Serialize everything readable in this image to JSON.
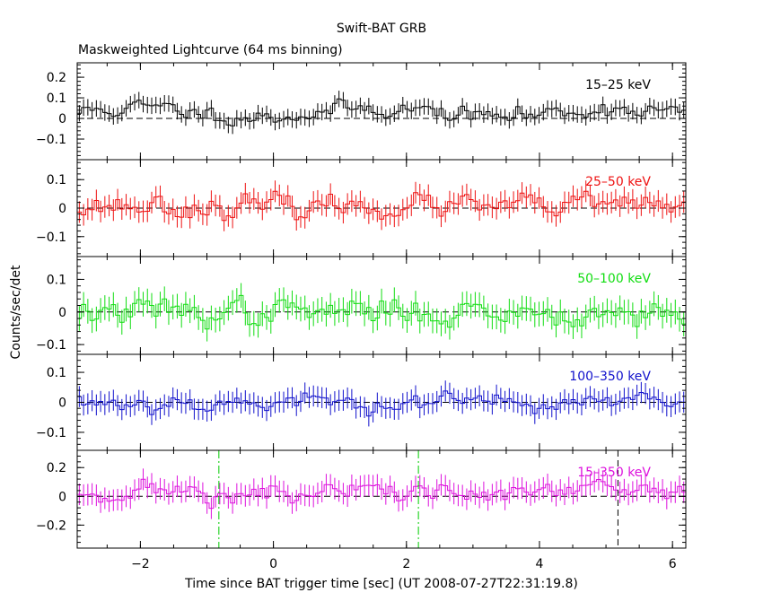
{
  "chart_data": {
    "type": "line",
    "title": "Swift-BAT GRB",
    "subtitle": "Maskweighted Lightcurve (64 ms binning)",
    "xlabel": "Time since BAT trigger time [sec] (UT 2008-07-27T22:31:19.8)",
    "ylabel": "Counts/sec/det",
    "xlim": [
      -2.95,
      6.2
    ],
    "x_ticks": [
      -2,
      0,
      2,
      4,
      6
    ],
    "x_tick_labels": [
      "−2",
      "0",
      "2",
      "4",
      "6"
    ],
    "bin_width_sec": 0.064,
    "zero_line": "dashed",
    "vertical_markers": [
      {
        "x": -0.82,
        "style": "dash-dot",
        "color": "#00cc00"
      },
      {
        "x": 2.18,
        "style": "dash-dot",
        "color": "#00cc00"
      },
      {
        "x": 5.18,
        "style": "dashed",
        "color": "#000000"
      }
    ],
    "panels": [
      {
        "name": "15–25 keV",
        "color": "#000000",
        "ylim": [
          -0.2,
          0.27
        ],
        "y_ticks": [
          -0.1,
          0,
          0.1,
          0.2
        ],
        "y_tick_labels": [
          "−0.1",
          "0",
          "0.1",
          "0.2"
        ],
        "level": 0.05,
        "noise": 0.04,
        "err": 0.04,
        "seed": 11
      },
      {
        "name": "25–50 keV",
        "color": "#ee1111",
        "ylim": [
          -0.17,
          0.17
        ],
        "y_ticks": [
          -0.1,
          0,
          0.1
        ],
        "y_tick_labels": [
          "−0.1",
          "0",
          "0.1"
        ],
        "level": 0.01,
        "noise": 0.04,
        "err": 0.038,
        "seed": 23
      },
      {
        "name": "50–100 keV",
        "color": "#11dd11",
        "ylim": [
          -0.13,
          0.17
        ],
        "y_ticks": [
          -0.1,
          0,
          0.1
        ],
        "y_tick_labels": [
          "−0.1",
          "0",
          "0.1"
        ],
        "level": 0.0,
        "noise": 0.04,
        "err": 0.038,
        "seed": 37
      },
      {
        "name": "100–350 keV",
        "color": "#1111cc",
        "ylim": [
          -0.16,
          0.16
        ],
        "y_ticks": [
          -0.1,
          0,
          0.1
        ],
        "y_tick_labels": [
          "−0.1",
          "0",
          "0.1"
        ],
        "level": 0.0,
        "noise": 0.03,
        "err": 0.035,
        "seed": 53
      },
      {
        "name": "15–350 keV",
        "color": "#dd11dd",
        "ylim": [
          -0.36,
          0.32
        ],
        "y_ticks": [
          -0.2,
          0,
          0.2
        ],
        "y_tick_labels": [
          "−0.2",
          "0",
          "0.2"
        ],
        "level": 0.04,
        "noise": 0.07,
        "err": 0.075,
        "seed": 71
      }
    ]
  }
}
